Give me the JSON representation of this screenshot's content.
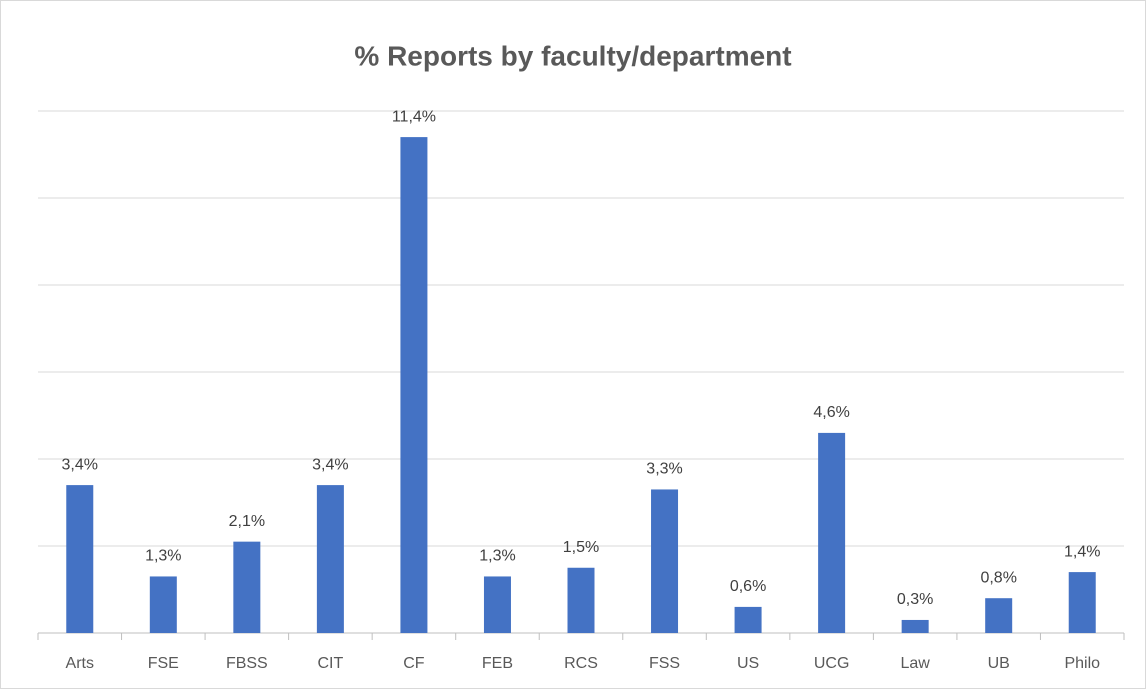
{
  "chart_data": {
    "type": "bar",
    "title": "% Reports by faculty/department",
    "categories": [
      "Arts",
      "FSE",
      "FBSS",
      "CIT",
      "CF",
      "FEB",
      "RCS",
      "FSS",
      "US",
      "UCG",
      "Law",
      "UB",
      "Philo"
    ],
    "values": [
      3.4,
      1.3,
      2.1,
      3.4,
      11.4,
      1.3,
      1.5,
      3.3,
      0.6,
      4.6,
      0.3,
      0.8,
      1.4
    ],
    "value_labels": [
      "3,4%",
      "1,3%",
      "2,1%",
      "3,4%",
      "11,4%",
      "1,3%",
      "1,5%",
      "3,3%",
      "0,6%",
      "4,6%",
      "0,3%",
      "0,8%",
      "1,4%"
    ],
    "color": "#4472c4",
    "ylim": [
      0,
      12
    ],
    "yticks": [
      0,
      2,
      4,
      6,
      8,
      10,
      12
    ],
    "grid": true
  }
}
